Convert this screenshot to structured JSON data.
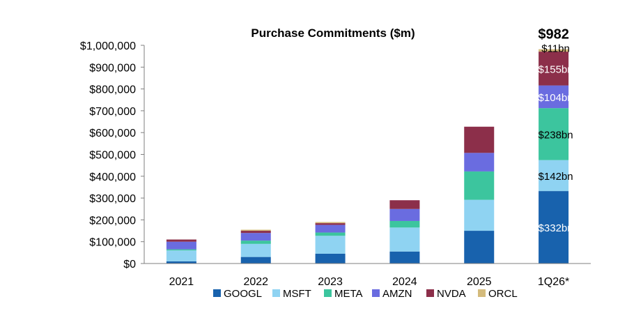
{
  "chart_data": {
    "type": "bar",
    "stacked": true,
    "title": "Purchase Commitments ($m)",
    "xlabel": "",
    "ylabel": "",
    "categories": [
      "2021",
      "2022",
      "2023",
      "2024",
      "2025",
      "1Q26*"
    ],
    "ylim": [
      0,
      1000000
    ],
    "y_ticks": [
      0,
      100000,
      200000,
      300000,
      400000,
      500000,
      600000,
      700000,
      800000,
      900000,
      1000000
    ],
    "y_tick_labels": [
      "$0",
      "$100,000",
      "$200,000",
      "$300,000",
      "$400,000",
      "$500,000",
      "$600,000",
      "$700,000",
      "$800,000",
      "$900,000",
      "$1,000,000"
    ],
    "grid": false,
    "legend_position": "bottom",
    "series": [
      {
        "name": "GOOGL",
        "color": "#1862ad",
        "values": [
          10000,
          30000,
          45000,
          55000,
          150000,
          332000
        ]
      },
      {
        "name": "MSFT",
        "color": "#8fd3f2",
        "values": [
          50000,
          60000,
          82000,
          110000,
          142000,
          142000
        ]
      },
      {
        "name": "META",
        "color": "#3cc59e",
        "values": [
          5000,
          15000,
          15000,
          30000,
          130000,
          238000
        ]
      },
      {
        "name": "AMZN",
        "color": "#6a6ce0",
        "values": [
          35000,
          35000,
          35000,
          55000,
          85000,
          104000
        ]
      },
      {
        "name": "NVDA",
        "color": "#8c2f4a",
        "values": [
          10000,
          10000,
          8000,
          40000,
          120000,
          155000
        ]
      },
      {
        "name": "ORCL",
        "color": "#d4bb7c",
        "values": [
          0,
          5000,
          5000,
          0,
          0,
          11000
        ]
      }
    ],
    "annotations": [
      {
        "category": "1Q26*",
        "series": "GOOGL",
        "text": "$332bn",
        "color": "#ffffff"
      },
      {
        "category": "1Q26*",
        "series": "MSFT",
        "text": "$142bn",
        "color": "#000000"
      },
      {
        "category": "1Q26*",
        "series": "META",
        "text": "$238bn",
        "color": "#000000"
      },
      {
        "category": "1Q26*",
        "series": "AMZN",
        "text": "$104bn",
        "color": "#ffffff"
      },
      {
        "category": "1Q26*",
        "series": "NVDA",
        "text": "$155bn",
        "color": "#ffffff"
      },
      {
        "category": "1Q26*",
        "series": "ORCL",
        "text": "$11bn",
        "color": "#000000"
      }
    ],
    "total_label": {
      "category": "1Q26*",
      "text": "$982"
    },
    "axis_color": "#7f7f7f"
  }
}
